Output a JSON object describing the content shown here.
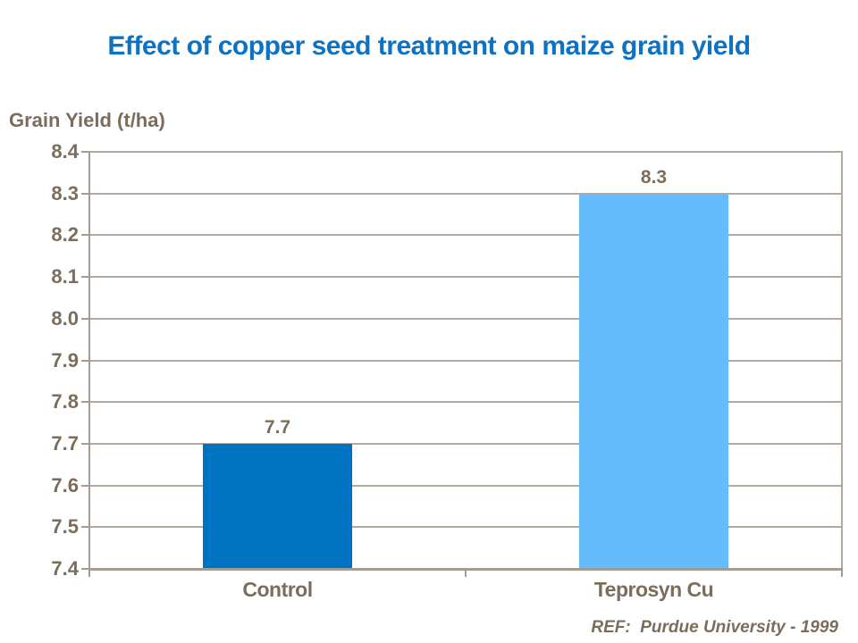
{
  "slide": {
    "footer_ref": "REF:  Purdue University - 1999"
  },
  "chart_data": {
    "type": "bar",
    "title": "Effect of copper seed treatment on maize grain yield",
    "categories": [
      "Control",
      "Teprosyn Cu"
    ],
    "values": [
      7.7,
      8.3
    ],
    "data_labels": [
      "7.7",
      "8.3"
    ],
    "xlabel": "",
    "ylabel": "Grain Yield (t/ha)",
    "ylim": [
      7.4,
      8.4
    ],
    "ytick_step": 0.1,
    "grid": true,
    "legend": "none",
    "bar_colors": [
      "#0072C2",
      "#66BCFB"
    ],
    "colors": {
      "title": "#0D72C2",
      "text": "#7C6D5B",
      "gridline": "#B2AAA1",
      "axis": "#A49C92"
    }
  }
}
